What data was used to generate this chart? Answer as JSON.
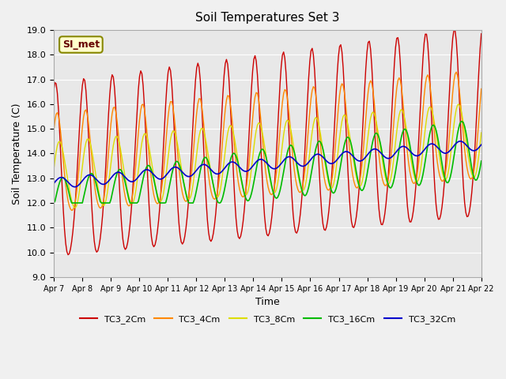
{
  "title": "Soil Temperatures Set 3",
  "xlabel": "Time",
  "ylabel": "Soil Temperature (C)",
  "ylim": [
    9.0,
    19.0
  ],
  "yticks": [
    9.0,
    10.0,
    11.0,
    12.0,
    13.0,
    14.0,
    15.0,
    16.0,
    17.0,
    18.0,
    19.0
  ],
  "date_labels": [
    "Apr 7",
    "Apr 8",
    "Apr 9",
    "Apr 10",
    "Apr 11",
    "Apr 12",
    "Apr 13",
    "Apr 14",
    "Apr 15",
    "Apr 16",
    "Apr 17",
    "Apr 18",
    "Apr 19",
    "Apr 20",
    "Apr 21",
    "Apr 22"
  ],
  "colors": {
    "TC3_2Cm": "#cc0000",
    "TC3_4Cm": "#ff8800",
    "TC3_8Cm": "#dddd00",
    "TC3_16Cm": "#00bb00",
    "TC3_32Cm": "#0000cc"
  },
  "bg_color": "#e8e8e8",
  "plot_bg": "#e8e8e8",
  "annotation_text": "SI_met",
  "annotation_bg": "#ffffcc",
  "annotation_border": "#888800"
}
